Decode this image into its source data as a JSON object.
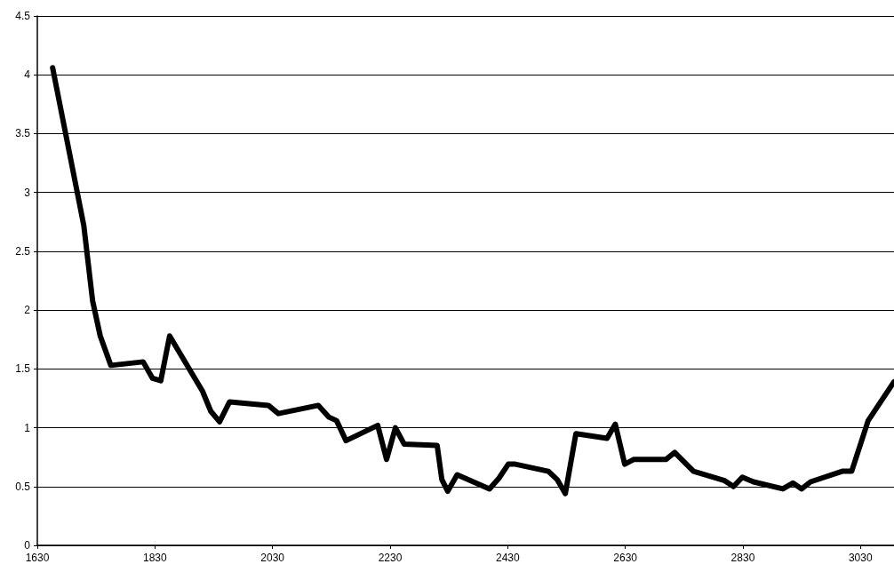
{
  "chart_data": {
    "type": "line",
    "x": [
      1656,
      1709,
      1724,
      1737,
      1755,
      1810,
      1826,
      1840,
      1855,
      1911,
      1925,
      1940,
      1957,
      2023,
      2040,
      2108,
      2126,
      2139,
      2155,
      2209,
      2224,
      2239,
      2254,
      2310,
      2318,
      2328,
      2344,
      2399,
      2415,
      2431,
      2443,
      2499,
      2514,
      2528,
      2546,
      2599,
      2613,
      2629,
      2644,
      2699,
      2714,
      2746,
      2799,
      2814,
      2829,
      2848,
      2898,
      2915,
      2930,
      2945,
      2999,
      3015,
      3030,
      3043,
      3087
    ],
    "series": [
      {
        "color": "#000000",
        "values": [
          4.06,
          2.72,
          2.08,
          1.78,
          1.53,
          1.56,
          1.42,
          1.4,
          1.78,
          1.31,
          1.14,
          1.05,
          1.22,
          1.19,
          1.12,
          1.19,
          1.09,
          1.06,
          0.89,
          1.02,
          0.73,
          1.0,
          0.86,
          0.85,
          0.56,
          0.46,
          0.6,
          0.48,
          0.57,
          0.69,
          0.69,
          0.63,
          0.56,
          0.44,
          0.95,
          0.91,
          1.03,
          0.69,
          0.73,
          0.73,
          0.79,
          0.63,
          0.55,
          0.5,
          0.58,
          0.54,
          0.48,
          0.53,
          0.48,
          0.54,
          0.63,
          0.63,
          0.86,
          1.06,
          1.39
        ]
      }
    ],
    "xlim": [
      1630,
      3087
    ],
    "xticks": [
      1630,
      1830,
      2030,
      2230,
      2430,
      2630,
      2830,
      3030
    ],
    "ylim": [
      0,
      4.5
    ],
    "yticks": [
      0,
      0.5,
      1,
      1.5,
      2,
      2.5,
      3,
      3.5,
      4,
      4.5
    ],
    "grid": "y",
    "marker": "none",
    "line_style": "solid"
  }
}
